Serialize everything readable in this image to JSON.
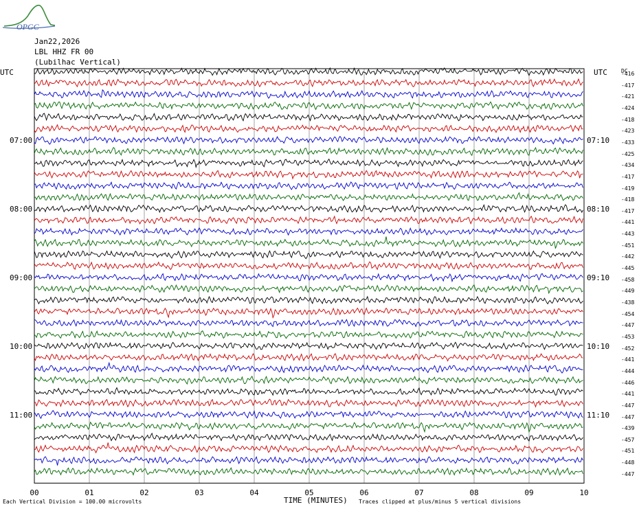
{
  "logo_text": "OPGC",
  "header": {
    "date": "Jan22,2026",
    "station": "LBL HHZ FR 00",
    "location": "(Lubilhac Vertical)"
  },
  "utc_left": "UTC",
  "utc_right": "UTC",
  "dc_label": "DC",
  "left_times": [
    "07:00",
    "08:00",
    "09:00",
    "10:00",
    "11:00"
  ],
  "right_times": [
    "07:10",
    "08:10",
    "09:10",
    "10:10",
    "11:10"
  ],
  "x_ticks": [
    "00",
    "01",
    "02",
    "03",
    "04",
    "05",
    "06",
    "07",
    "08",
    "09",
    "10"
  ],
  "xlabel": "TIME (MINUTES)",
  "footer_left": "Each Vertical Division =  100.00 microvolts",
  "footer_right": "Traces clipped at plus/minus 5 vertical divisions",
  "colors": [
    "#000000",
    "#cc0000",
    "#0000cc",
    "#006600"
  ],
  "chart_data": {
    "type": "line",
    "title": "LBL HHZ FR 00 (Lubilhac Vertical)",
    "xlabel": "TIME (MINUTES)",
    "xlim": [
      0,
      10
    ],
    "trace_count": 36,
    "dc_offsets": [
      -416,
      -417,
      -421,
      -424,
      -418,
      -423,
      -433,
      -425,
      -434,
      -417,
      -419,
      -418,
      -417,
      -441,
      -443,
      -451,
      -442,
      -445,
      -458,
      -449,
      -438,
      -454,
      -447,
      -453,
      -452,
      -441,
      -444,
      -446,
      -441,
      -447,
      -447,
      -439,
      -457,
      -451,
      -448,
      -447
    ],
    "grid": true
  }
}
